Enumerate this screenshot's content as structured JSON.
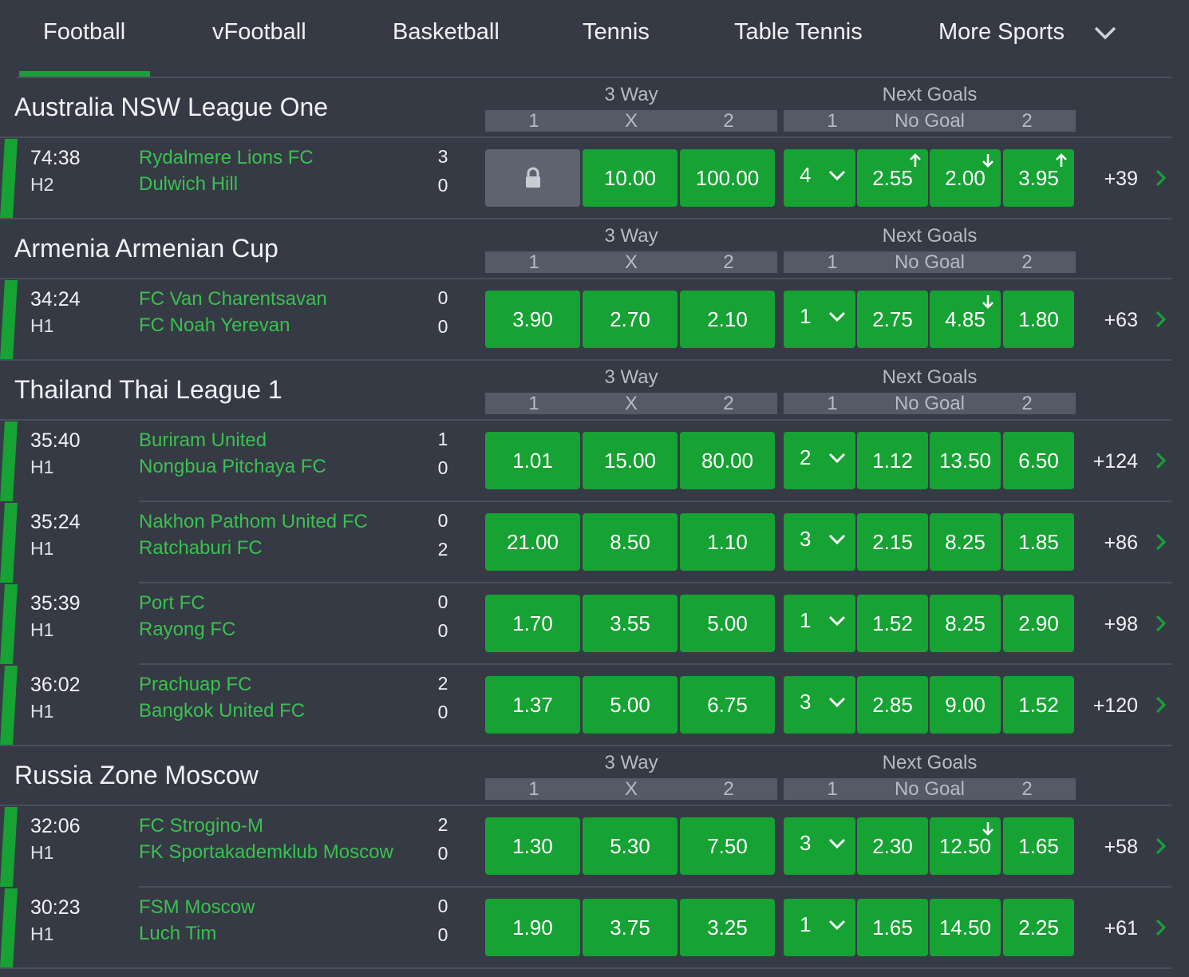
{
  "tabs": [
    {
      "label": "Football",
      "active": true
    },
    {
      "label": "vFootball"
    },
    {
      "label": "Basketball"
    },
    {
      "label": "Tennis"
    },
    {
      "label": "Table Tennis"
    },
    {
      "label": "More Sports"
    }
  ],
  "markets": {
    "three_way": {
      "title": "3 Way",
      "selections": [
        "1",
        "X",
        "2"
      ]
    },
    "next_goals": {
      "title": "Next Goals",
      "selections": [
        "1",
        "No Goal",
        "2"
      ]
    }
  },
  "colors": {
    "odds_bg": "#17a234",
    "team": "#39c14f",
    "locked": "#5e6370",
    "background": "#363a45"
  },
  "leagues": [
    {
      "name": "Australia NSW League One",
      "matches": [
        {
          "time": "74:38",
          "period": "H2",
          "home": "Rydalmere Lions FC",
          "away": "Dulwich Hill",
          "home_score": "3",
          "away_score": "0",
          "three_way": [
            {
              "locked": true,
              "icon": "lock-icon"
            },
            {
              "value": "10.00"
            },
            {
              "value": "100.00"
            }
          ],
          "goal_line": "4",
          "next_goals": [
            {
              "value": "2.55",
              "trend": "up"
            },
            {
              "value": "2.00",
              "trend": "down"
            },
            {
              "value": "3.95",
              "trend": "up"
            }
          ],
          "more": "+39"
        }
      ]
    },
    {
      "name": "Armenia Armenian Cup",
      "matches": [
        {
          "time": "34:24",
          "period": "H1",
          "home": "FC Van Charentsavan",
          "away": "FC Noah Yerevan",
          "home_score": "0",
          "away_score": "0",
          "three_way": [
            {
              "value": "3.90"
            },
            {
              "value": "2.70"
            },
            {
              "value": "2.10"
            }
          ],
          "goal_line": "1",
          "next_goals": [
            {
              "value": "2.75"
            },
            {
              "value": "4.85",
              "trend": "down"
            },
            {
              "value": "1.80"
            }
          ],
          "more": "+63"
        }
      ]
    },
    {
      "name": "Thailand Thai League 1",
      "matches": [
        {
          "time": "35:40",
          "period": "H1",
          "home": "Buriram United",
          "away": "Nongbua Pitchaya FC",
          "home_score": "1",
          "away_score": "0",
          "three_way": [
            {
              "value": "1.01"
            },
            {
              "value": "15.00"
            },
            {
              "value": "80.00"
            }
          ],
          "goal_line": "2",
          "next_goals": [
            {
              "value": "1.12"
            },
            {
              "value": "13.50"
            },
            {
              "value": "6.50"
            }
          ],
          "more": "+124"
        },
        {
          "time": "35:24",
          "period": "H1",
          "home": "Nakhon Pathom United FC",
          "away": "Ratchaburi FC",
          "home_score": "0",
          "away_score": "2",
          "three_way": [
            {
              "value": "21.00"
            },
            {
              "value": "8.50"
            },
            {
              "value": "1.10"
            }
          ],
          "goal_line": "3",
          "next_goals": [
            {
              "value": "2.15"
            },
            {
              "value": "8.25"
            },
            {
              "value": "1.85"
            }
          ],
          "more": "+86"
        },
        {
          "time": "35:39",
          "period": "H1",
          "home": "Port FC",
          "away": "Rayong FC",
          "home_score": "0",
          "away_score": "0",
          "three_way": [
            {
              "value": "1.70"
            },
            {
              "value": "3.55"
            },
            {
              "value": "5.00"
            }
          ],
          "goal_line": "1",
          "next_goals": [
            {
              "value": "1.52"
            },
            {
              "value": "8.25"
            },
            {
              "value": "2.90"
            }
          ],
          "more": "+98"
        },
        {
          "time": "36:02",
          "period": "H1",
          "home": "Prachuap FC",
          "away": "Bangkok United FC",
          "home_score": "2",
          "away_score": "0",
          "three_way": [
            {
              "value": "1.37"
            },
            {
              "value": "5.00"
            },
            {
              "value": "6.75"
            }
          ],
          "goal_line": "3",
          "next_goals": [
            {
              "value": "2.85"
            },
            {
              "value": "9.00"
            },
            {
              "value": "1.52"
            }
          ],
          "more": "+120"
        }
      ]
    },
    {
      "name": "Russia Zone Moscow",
      "matches": [
        {
          "time": "32:06",
          "period": "H1",
          "home": "FC Strogino-M",
          "away": "FK Sportakademklub Moscow",
          "home_score": "2",
          "away_score": "0",
          "three_way": [
            {
              "value": "1.30"
            },
            {
              "value": "5.30"
            },
            {
              "value": "7.50"
            }
          ],
          "goal_line": "3",
          "next_goals": [
            {
              "value": "2.30"
            },
            {
              "value": "12.50",
              "trend": "down"
            },
            {
              "value": "1.65"
            }
          ],
          "more": "+58"
        },
        {
          "time": "30:23",
          "period": "H1",
          "home": "FSM Moscow",
          "away": "Luch Tim",
          "home_score": "0",
          "away_score": "0",
          "three_way": [
            {
              "value": "1.90"
            },
            {
              "value": "3.75"
            },
            {
              "value": "3.25"
            }
          ],
          "goal_line": "1",
          "next_goals": [
            {
              "value": "1.65"
            },
            {
              "value": "14.50"
            },
            {
              "value": "2.25"
            }
          ],
          "more": "+61"
        }
      ]
    }
  ]
}
